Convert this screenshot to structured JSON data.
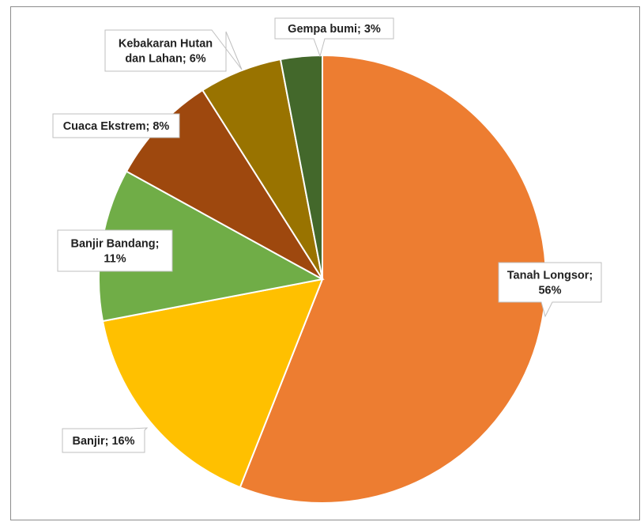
{
  "chart_data": {
    "type": "pie",
    "title": "",
    "slices": [
      {
        "label": "Tanah Longsor",
        "value": 56,
        "display": "Tanah Longsor;|56%",
        "color": "#ed7d31"
      },
      {
        "label": "Banjir",
        "value": 16,
        "display": "Banjir; 16%",
        "color": "#ffc000"
      },
      {
        "label": "Banjir Bandang",
        "value": 11,
        "display": "Banjir Bandang;|11%",
        "color": "#70ad47"
      },
      {
        "label": "Cuaca Ekstrem",
        "value": 8,
        "display": "Cuaca Ekstrem; 8%",
        "color": "#9e480e"
      },
      {
        "label": "Kebakaran Hutan dan Lahan",
        "value": 6,
        "display": "Kebakaran Hutan|dan Lahan; 6%",
        "color": "#997300"
      },
      {
        "label": "Gempa bumi",
        "value": 3,
        "display": "Gempa bumi; 3%",
        "color": "#43682b"
      }
    ],
    "legend": "none",
    "data_labels": "callout"
  }
}
